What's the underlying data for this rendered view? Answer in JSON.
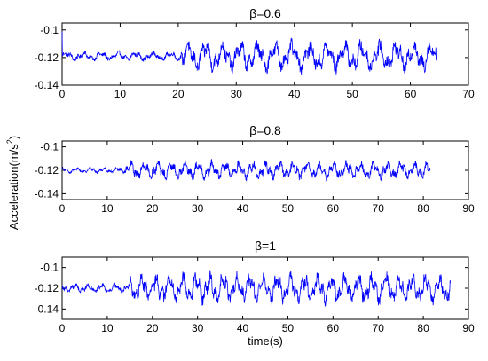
{
  "figure": {
    "ylabel_main": "Acceleration(m/s",
    "ylabel_sup": "2",
    "ylabel_close": ")",
    "xlabel": "time(s)",
    "line_color": "#0000ff"
  },
  "chart_data": [
    {
      "type": "line",
      "title": "β=0.6",
      "xlabel": "",
      "ylabel": "",
      "xlim": [
        0,
        70
      ],
      "ylim": [
        -0.14,
        -0.095
      ],
      "xticks": [
        0,
        10,
        20,
        30,
        40,
        50,
        60,
        70
      ],
      "xtick_labels": [
        "0",
        "10",
        "20",
        "30",
        "40",
        "50",
        "60",
        "70"
      ],
      "yticks": [
        -0.1,
        -0.12,
        -0.14
      ],
      "ytick_labels": [
        "-0.1",
        "-0.12",
        "-0.14"
      ],
      "grid": false,
      "x_end": 64.5,
      "quiet_until": 20.5,
      "series": [
        {
          "baseline": -0.119,
          "quiet_amplitude": 0.003,
          "active_amplitude": 0.01,
          "min": -0.135,
          "max": -0.101,
          "initial_spike": -0.1
        }
      ]
    },
    {
      "type": "line",
      "title": "β=0.8",
      "xlabel": "",
      "ylabel": "",
      "xlim": [
        0,
        90
      ],
      "ylim": [
        -0.145,
        -0.095
      ],
      "xticks": [
        0,
        10,
        20,
        30,
        40,
        50,
        60,
        70,
        80,
        90
      ],
      "xtick_labels": [
        "0",
        "10",
        "20",
        "30",
        "40",
        "50",
        "60",
        "70",
        "80",
        "90"
      ],
      "yticks": [
        -0.1,
        -0.12,
        -0.14
      ],
      "ytick_labels": [
        "-0.1",
        "-0.12",
        "-0.14"
      ],
      "grid": false,
      "x_end": 81.5,
      "quiet_until": 14,
      "series": [
        {
          "baseline": -0.12,
          "quiet_amplitude": 0.002,
          "active_amplitude": 0.007,
          "min": -0.131,
          "max": -0.109
        }
      ]
    },
    {
      "type": "line",
      "title": "β=1",
      "xlabel": "time(s)",
      "ylabel": "",
      "xlim": [
        0,
        90
      ],
      "ylim": [
        -0.15,
        -0.09
      ],
      "xticks": [
        0,
        10,
        20,
        30,
        40,
        50,
        60,
        70,
        80,
        90
      ],
      "xtick_labels": [
        "0",
        "10",
        "20",
        "30",
        "40",
        "50",
        "60",
        "70",
        "80",
        "90"
      ],
      "yticks": [
        -0.1,
        -0.12,
        -0.14
      ],
      "ytick_labels": [
        "-0.1",
        "-0.12",
        "-0.14"
      ],
      "grid": false,
      "x_end": 86,
      "quiet_until": 15,
      "series": [
        {
          "baseline": -0.12,
          "quiet_amplitude": 0.004,
          "active_amplitude": 0.013,
          "min": -0.144,
          "max": -0.096
        }
      ]
    }
  ]
}
